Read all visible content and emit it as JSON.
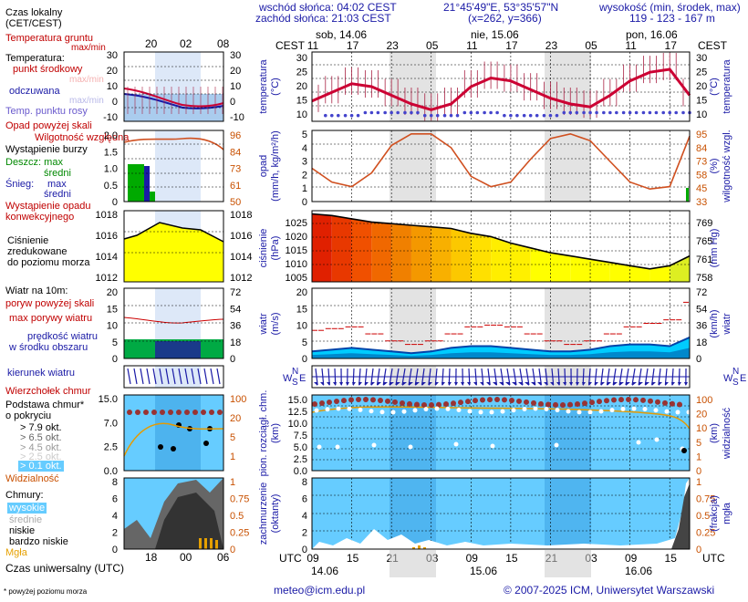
{
  "header": {
    "sunrise": "wschód słońca: 04:02 CEST",
    "sunset": "zachód słońca: 21:03 CEST",
    "coords": "21°45'49\"E, 53°35'57\"N",
    "grid": "(x=262, y=366)",
    "elev_label": "wysokość (min, środek, max)",
    "elev_values": "119 - 123 - 167 m"
  },
  "top_axis": {
    "tz": "CEST",
    "days": [
      "sob, 14.06",
      "nie, 15.06",
      "pon, 16.06"
    ],
    "hours": [
      "11",
      "17",
      "23",
      "05",
      "11",
      "17",
      "23",
      "05",
      "11",
      "17"
    ]
  },
  "bottom_axis": {
    "tz": "UTC",
    "hours": [
      "09",
      "15",
      "21",
      "03",
      "09",
      "15",
      "21",
      "03",
      "09",
      "15"
    ],
    "dates": [
      "14.06",
      "15.06",
      "16.06"
    ]
  },
  "legend": {
    "local_time": "Czas lokalny",
    "local_time2": "(CET/CEST)",
    "ground_temp": "Temperatura gruntu",
    "ground_temp2": "max/min",
    "temperature": "Temperatura:",
    "mid_point": "punkt środkowy",
    "maxmin": "max/min",
    "felt": "odczuwana",
    "maxmin2": "max/min",
    "dew": "Temp. punktu rosy",
    "precip_over": "Opad powyżej skali",
    "storm": "Wystąpienie burzy",
    "rain": "Deszcz: max",
    "avg1": "średni",
    "snow": "Śnieg:",
    "max2": "max",
    "avg2": "średni",
    "precip_occ": "Wystąpienie opadu",
    "precip_occ2": "konwekcyjnego",
    "humidity": "Wilgotność względna",
    "pressure1": "Ciśnienie",
    "pressure2": "zredukowane",
    "pressure3": "do poziomu morza",
    "wind10": "Wiatr na 10m:",
    "gust_over": "poryw powyżej skali",
    "gust_max": "max porywy wiatru",
    "wind_avg": "prędkość wiatru",
    "wind_avg2": "w środku obszaru",
    "wind_dir": "kierunek wiatru",
    "cloud_top": "Wierzchołek chmur",
    "cloud_base": "Podstawa chmur*",
    "cover": "o pokryciu",
    "okt79": "> 7.9 okt.",
    "okt65": "> 6.5 okt.",
    "okt45": "> 4.5 okt.",
    "okt25": "> 2.5 okt.",
    "okt01": "> 0.1 okt.",
    "visibility": "Widzialność",
    "clouds": "Chmury:",
    "high": "wysokie",
    "mid": "średnie",
    "low": "niskie",
    "vlow": "bardzo niskie",
    "fog": "Mgła",
    "utc": "Czas uniwersalny (UTC)",
    "footnote": "* powyżej poziomu morza"
  },
  "small_axis_top": [
    "20",
    "02",
    "08"
  ],
  "small_axis_bottom": [
    "18",
    "00",
    "06"
  ],
  "panel_labels": {
    "temp": "temperatura (°C)",
    "precip": "opad (mm/h, kg/m²/h)",
    "humid": "wilgotność wzgl. (%)",
    "press": "ciśnienie (hPa)",
    "press_mm": "(mm Hg)",
    "wind": "wiatr (m/s)",
    "wind_kmh": "wiatr (km/h)",
    "cloud": "pion. rozciągł. chm. (km)",
    "vis": "widzialność (km)",
    "cover": "zachmurzenie (oktanty)",
    "fog": "mgła (frakcja)"
  },
  "ticks": {
    "temp": [
      "30",
      "25",
      "20",
      "15",
      "10"
    ],
    "precip": [
      "5",
      "4",
      "3",
      "2",
      "1",
      "0"
    ],
    "humid": [
      "95",
      "84",
      "73",
      "58",
      "45",
      "33"
    ],
    "press": [
      "1025",
      "1020",
      "1015",
      "1010",
      "1005"
    ],
    "press_mm": [
      "769",
      "765",
      "761",
      "758"
    ],
    "wind": [
      "20",
      "15",
      "10",
      "5",
      "0"
    ],
    "wind_kmh": [
      "72",
      "54",
      "36",
      "18",
      "0"
    ],
    "cloud": [
      "15.0",
      "12.5",
      "10.0",
      "7.5",
      "5.0",
      "2.5",
      "0.0"
    ],
    "vis": [
      "100",
      "20",
      "10",
      "5",
      "1",
      "0"
    ],
    "cover": [
      "8",
      "6",
      "4",
      "2",
      "0"
    ],
    "fog": [
      "1",
      "0.75",
      "0.5",
      "0.25",
      "0"
    ],
    "s_temp_l": [
      "30",
      "20",
      "10",
      "0",
      "-10"
    ],
    "s_temp_r": [
      "30",
      "20",
      "10",
      "0",
      "-10"
    ],
    "s_precip": [
      "2.0",
      "1.5",
      "1.0",
      "0.5",
      "0"
    ],
    "s_humid": [
      "96",
      "84",
      "73",
      "61",
      "50"
    ],
    "s_press": [
      "1018",
      "1016",
      "1014",
      "1012"
    ],
    "s_wind": [
      "20",
      "15",
      "10",
      "5",
      "0"
    ],
    "s_wind_r": [
      "72",
      "54",
      "36",
      "18",
      "0"
    ],
    "s_cloud": [
      "15.0",
      "7.0",
      "2.5",
      "0.0"
    ],
    "s_vis": [
      "100",
      "20",
      "5",
      "1"
    ],
    "s_cover": [
      "8",
      "6",
      "4",
      "2",
      "0"
    ],
    "s_fog": [
      "1",
      "0.75",
      "0.5",
      "0.25",
      "0"
    ]
  },
  "footer": {
    "email": "meteo@icm.edu.pl",
    "copyright": "© 2007-2025 ICM, Uniwersytet Warszawski"
  },
  "colors": {
    "temp_line": "#cc0033",
    "dew_dots": "#4444cc",
    "humidity": "#d05020",
    "pressure_line": "#000000",
    "wind_fill": "#00ccff",
    "wind_dark": "#0044aa",
    "gust": "#cc0000",
    "cloud_bg": "#66ccff",
    "night": "#cccccc"
  },
  "chart_data": [
    {
      "type": "line",
      "title": "temperatura",
      "ylabel": "temperatura (°C)",
      "ylim": [
        8,
        32
      ],
      "x": [
        "11",
        "14",
        "17",
        "20",
        "23",
        "02",
        "05",
        "08",
        "11",
        "14",
        "17",
        "20",
        "23",
        "02",
        "05",
        "08",
        "11",
        "14",
        "17",
        "20"
      ],
      "series": [
        {
          "name": "punkt środkowy",
          "values": [
            15,
            18,
            21,
            20,
            17,
            14,
            12,
            14,
            20,
            23,
            22,
            19,
            16,
            14,
            13,
            17,
            22,
            25,
            26,
            17
          ]
        },
        {
          "name": "Temp. punktu rosy",
          "values": [
            9,
            10,
            10,
            11,
            11,
            11,
            10,
            10,
            11,
            11,
            10,
            10,
            10,
            11,
            11,
            11,
            11,
            11,
            11,
            11
          ]
        }
      ]
    },
    {
      "type": "line",
      "title": "wilgotność",
      "ylabel": "wilgotność wzgl. (%)",
      "ylim": [
        33,
        95
      ],
      "x": [
        "11",
        "14",
        "17",
        "20",
        "23",
        "02",
        "05",
        "08",
        "11",
        "14",
        "17",
        "20",
        "23",
        "02",
        "05",
        "08",
        "11",
        "14",
        "17",
        "20"
      ],
      "series": [
        {
          "name": "Wilgotność względna",
          "values": [
            62,
            50,
            46,
            58,
            82,
            92,
            92,
            80,
            55,
            46,
            50,
            70,
            88,
            92,
            86,
            68,
            50,
            44,
            46,
            90
          ]
        }
      ]
    },
    {
      "type": "area",
      "title": "ciśnienie",
      "ylabel": "ciśnienie (hPa)",
      "ylim": [
        1005,
        1027
      ],
      "x": [
        "11",
        "14",
        "17",
        "20",
        "23",
        "02",
        "05",
        "08",
        "11",
        "14",
        "17",
        "20",
        "23",
        "02",
        "05",
        "08",
        "11",
        "14",
        "17",
        "20"
      ],
      "series": [
        {
          "name": "Ciśnienie",
          "values": [
            1026,
            1025.5,
            1024.5,
            1023.5,
            1023,
            1022.5,
            1022,
            1021.5,
            1020,
            1019,
            1017,
            1015.5,
            1014,
            1013,
            1012,
            1011,
            1010,
            1009,
            1010,
            1013
          ]
        }
      ]
    },
    {
      "type": "line",
      "title": "wiatr",
      "ylabel": "wiatr (m/s)",
      "ylim": [
        0,
        20
      ],
      "x": [
        "11",
        "14",
        "17",
        "20",
        "23",
        "02",
        "05",
        "08",
        "11",
        "14",
        "17",
        "20",
        "23",
        "02",
        "05",
        "08",
        "11",
        "14",
        "17",
        "20"
      ],
      "series": [
        {
          "name": "prędkość wiatru",
          "values": [
            2,
            2.5,
            3,
            2.5,
            2,
            1.5,
            2,
            3,
            3.5,
            3.5,
            3,
            2.5,
            2,
            2,
            2.5,
            3.5,
            4,
            4,
            3.5,
            6
          ]
        },
        {
          "name": "max porywy wiatru",
          "values": [
            8,
            8.5,
            9,
            7,
            5,
            4,
            5,
            7,
            9,
            9.5,
            9,
            7,
            5,
            4,
            5,
            7,
            9,
            10,
            11,
            16
          ]
        }
      ]
    }
  ]
}
